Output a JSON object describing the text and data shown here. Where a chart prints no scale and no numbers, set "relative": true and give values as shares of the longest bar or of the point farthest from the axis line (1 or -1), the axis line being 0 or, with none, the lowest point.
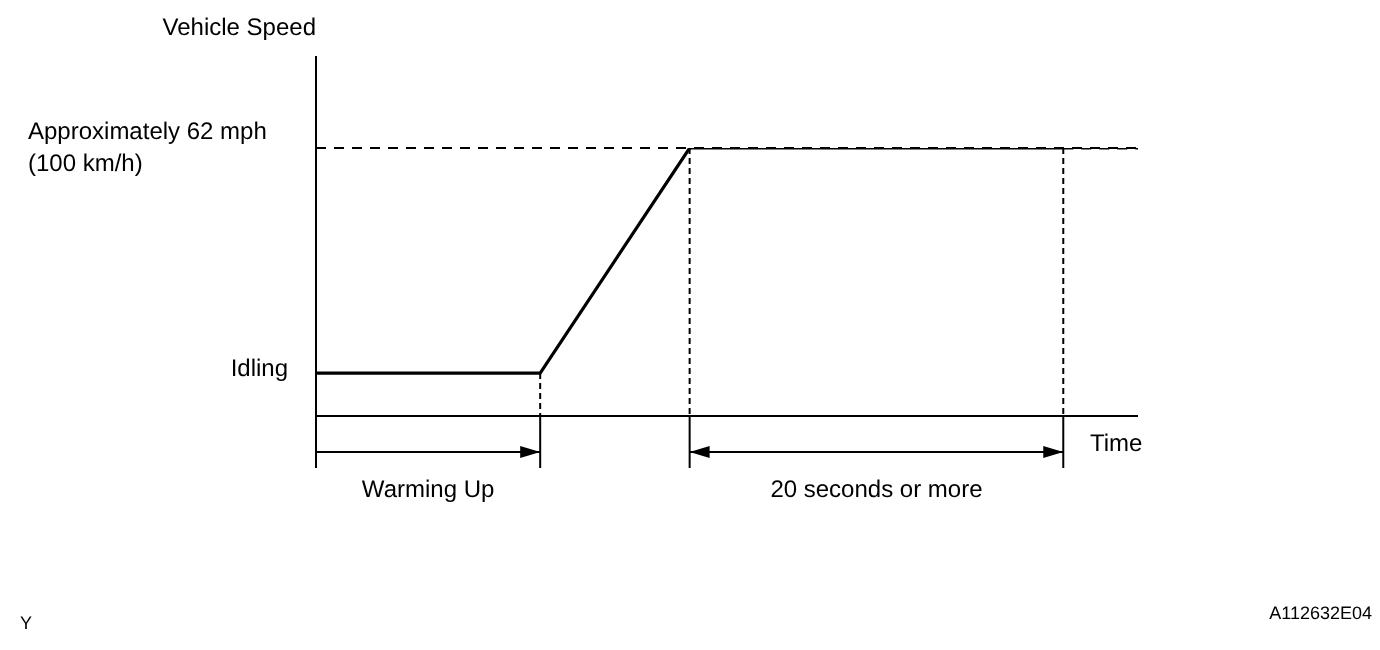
{
  "chart_data": {
    "type": "line",
    "relative": true,
    "xlabel": "Time",
    "ylabel": "Vehicle Speed",
    "legend": false,
    "tick_labels": false,
    "marker": "none",
    "categories": [
      null,
      null,
      null,
      null,
      null,
      null,
      null,
      null,
      null,
      null,
      null,
      null
    ],
    "series": [
      {
        "color": "#000000",
        "line_style": "solid",
        "values": [
          0.16,
          0.16,
          0.16,
          0.16,
          0.58,
          1,
          1,
          1,
          1,
          1,
          1,
          null
        ]
      },
      {
        "color": "#000000",
        "line_style": "dashed",
        "values": [
          null,
          null,
          null,
          null,
          null,
          null,
          null,
          null,
          null,
          null,
          1,
          1
        ]
      }
    ],
    "ref_lines": [
      {
        "axis": "y",
        "value": 1,
        "label": "Approximately 62 mph\n(100 km/h)",
        "line_style": "dashed",
        "color": "#000000"
      }
    ],
    "annotations": [
      "Idling",
      "Warming Up",
      "20 seconds or more",
      "Y",
      "A112632E04"
    ]
  }
}
